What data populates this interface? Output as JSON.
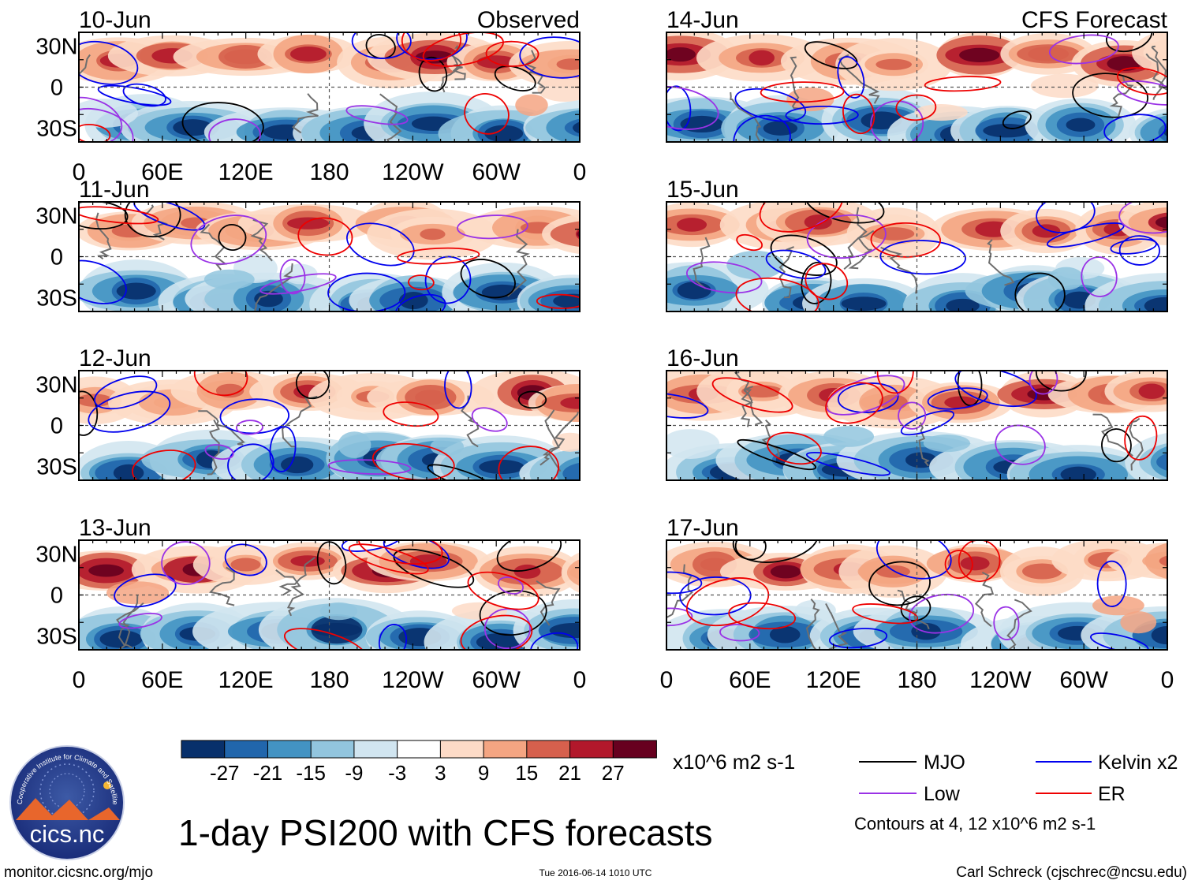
{
  "title": "1-day PSI200 with CFS forecasts",
  "labels": {
    "observed": "Observed",
    "forecast": "CFS Forecast"
  },
  "colorbar": {
    "colors": [
      "#08306b",
      "#2166ac",
      "#4393c3",
      "#92c5de",
      "#d1e5f0",
      "#ffffff",
      "#fddbc7",
      "#f4a582",
      "#d6604d",
      "#b2182b",
      "#67001f"
    ],
    "tick_labels": [
      "-27",
      "-21",
      "-15",
      "-9",
      "-3",
      "3",
      "9",
      "15",
      "21",
      "27"
    ],
    "units": "x10^6 m2 s-1"
  },
  "legend": {
    "items": [
      {
        "label": "MJO",
        "color": "#000000"
      },
      {
        "label": "Kelvin x2",
        "color": "#0000ee"
      },
      {
        "label": "Low",
        "color": "#9a32e6"
      },
      {
        "label": "ER",
        "color": "#ee0000"
      }
    ],
    "note": "Contours at 4, 12 x10^6 m2 s-1"
  },
  "footer": {
    "left": "monitor.cicsnc.org/mjo",
    "center": "Tue 2016-06-14 1010 UTC",
    "right": "Carl Schreck (cjschrec@ncsu.edu)"
  },
  "logo": {
    "name": "cics.nc",
    "ring_text": "Cooperative Institute for Climate and Satellites"
  },
  "chart_data": [
    {
      "type": "heatmap",
      "title": "10-Jun",
      "tag": "Observed",
      "lat_labels": [
        "30N",
        "0",
        "30S"
      ],
      "lon_labels": [
        "0",
        "60E",
        "120E",
        "180",
        "120W",
        "60W",
        "0"
      ],
      "seed": 11
    },
    {
      "type": "heatmap",
      "title": "11-Jun",
      "tag": "",
      "lat_labels": [
        "30N",
        "0",
        "30S"
      ],
      "lon_labels": [],
      "seed": 12
    },
    {
      "type": "heatmap",
      "title": "12-Jun",
      "tag": "",
      "lat_labels": [
        "30N",
        "0",
        "30S"
      ],
      "lon_labels": [],
      "seed": 13
    },
    {
      "type": "heatmap",
      "title": "13-Jun",
      "tag": "",
      "lat_labels": [
        "30N",
        "0",
        "30S"
      ],
      "lon_labels": [
        "0",
        "60E",
        "120E",
        "180",
        "120W",
        "60W",
        "0"
      ],
      "seed": 14
    },
    {
      "type": "heatmap",
      "title": "14-Jun",
      "tag": "CFS Forecast",
      "lat_labels": [],
      "lon_labels": [],
      "seed": 21
    },
    {
      "type": "heatmap",
      "title": "15-Jun",
      "tag": "",
      "lat_labels": [],
      "lon_labels": [],
      "seed": 22
    },
    {
      "type": "heatmap",
      "title": "16-Jun",
      "tag": "",
      "lat_labels": [],
      "lon_labels": [],
      "seed": 23
    },
    {
      "type": "heatmap",
      "title": "17-Jun",
      "tag": "",
      "lat_labels": [],
      "lon_labels": [
        "0",
        "60E",
        "120E",
        "180",
        "120W",
        "60W",
        "0"
      ],
      "seed": 24
    }
  ]
}
